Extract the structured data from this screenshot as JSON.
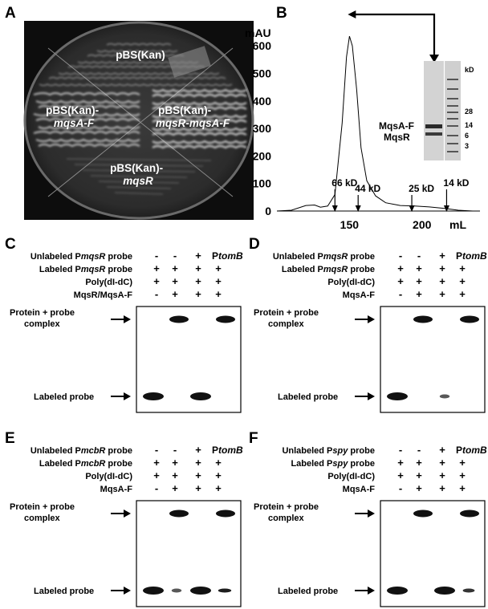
{
  "panels": {
    "A": {
      "label": "A",
      "sectors": [
        {
          "lines": [
            "pBS(Kan)"
          ],
          "italic": [
            false
          ]
        },
        {
          "lines": [
            "pBS(Kan)-",
            "mqsA-F"
          ],
          "italic": [
            false,
            true
          ]
        },
        {
          "lines": [
            "pBS(Kan)-",
            "mqsR-mqsA-F"
          ],
          "italic": [
            false,
            true
          ]
        },
        {
          "lines": [
            "pBS(Kan)-",
            "mqsR"
          ],
          "italic": [
            false,
            true
          ]
        }
      ]
    },
    "B": {
      "label": "B",
      "y_unit": "mAU",
      "x_unit": "mL",
      "markers": [
        "66 kD",
        "44 kD",
        "25 kD",
        "14 kD"
      ],
      "gel": {
        "unit": "kD",
        "ladder": [
          "28",
          "14",
          "6",
          "3"
        ],
        "bands": [
          "MqsA-F",
          "MqsR"
        ]
      }
    },
    "emsa": [
      {
        "label": "C",
        "rows": [
          {
            "pre": "Unlabeled P",
            "it": "mqsR",
            "post": " probe",
            "sym": [
              "-",
              "-",
              "+",
              "PtomB"
            ]
          },
          {
            "pre": "Labeled P",
            "it": "mqsR",
            "post": " probe",
            "sym": [
              "+",
              "+",
              "+",
              "+"
            ]
          },
          {
            "pre": "Poly(dI-dC)",
            "it": "",
            "post": "",
            "sym": [
              "+",
              "+",
              "+",
              "+"
            ]
          },
          {
            "pre": "MqsR/MqsA-F",
            "it": "",
            "post": "",
            "sym": [
              "-",
              "+",
              "+",
              "+"
            ]
          }
        ],
        "bands_top": [
          false,
          true,
          false,
          true
        ],
        "bands_bottom": [
          1,
          0,
          1,
          0
        ]
      },
      {
        "label": "D",
        "rows": [
          {
            "pre": "Unlabeled P",
            "it": "mqsR",
            "post": " probe",
            "sym": [
              "-",
              "-",
              "+",
              "PtomB"
            ]
          },
          {
            "pre": "Labeled P",
            "it": "mqsR",
            "post": " probe",
            "sym": [
              "+",
              "+",
              "+",
              "+"
            ]
          },
          {
            "pre": "Poly(dI-dC)",
            "it": "",
            "post": "",
            "sym": [
              "+",
              "+",
              "+",
              "+"
            ]
          },
          {
            "pre": "MqsA-F",
            "it": "",
            "post": "",
            "sym": [
              "-",
              "+",
              "+",
              "+"
            ]
          }
        ],
        "bands_top": [
          false,
          true,
          false,
          true
        ],
        "bands_bottom": [
          1,
          0,
          0.15,
          0
        ]
      },
      {
        "label": "E",
        "rows": [
          {
            "pre": "Unlabeled P",
            "it": "mcbR",
            "post": " probe",
            "sym": [
              "-",
              "-",
              "+",
              "PtomB"
            ]
          },
          {
            "pre": "Labeled P",
            "it": "mcbR",
            "post": " probe",
            "sym": [
              "+",
              "+",
              "+",
              "+"
            ]
          },
          {
            "pre": "Poly(dI-dC)",
            "it": "",
            "post": "",
            "sym": [
              "+",
              "+",
              "+",
              "+"
            ]
          },
          {
            "pre": "MqsA-F",
            "it": "",
            "post": "",
            "sym": [
              "-",
              "+",
              "+",
              "+"
            ]
          }
        ],
        "bands_top": [
          false,
          true,
          false,
          true
        ],
        "bands_bottom": [
          1,
          0.15,
          1,
          0.4
        ]
      },
      {
        "label": "F",
        "rows": [
          {
            "pre": "Unlabeled P",
            "it": "spy",
            "post": " probe",
            "sym": [
              "-",
              "-",
              "+",
              "PtomB"
            ]
          },
          {
            "pre": "Labeled P",
            "it": "spy",
            "post": " probe",
            "sym": [
              "+",
              "+",
              "+",
              "+"
            ]
          },
          {
            "pre": "Poly(dI-dC)",
            "it": "",
            "post": "",
            "sym": [
              "+",
              "+",
              "+",
              "+"
            ]
          },
          {
            "pre": "MqsA-F",
            "it": "",
            "post": "",
            "sym": [
              "-",
              "+",
              "+",
              "+"
            ]
          }
        ],
        "bands_top": [
          false,
          true,
          false,
          true
        ],
        "bands_bottom": [
          1,
          0,
          1,
          0.3
        ]
      }
    ],
    "complex_label": [
      "Protein + probe",
      "complex"
    ],
    "probe_label": "Labeled probe"
  },
  "chart_data": {
    "type": "line",
    "title": "",
    "xlabel": "mL",
    "ylabel": "mAU",
    "ylim": [
      0,
      650
    ],
    "y_ticks": [
      0,
      100,
      200,
      300,
      400,
      500,
      600
    ],
    "x_ticks": [
      150,
      200
    ],
    "series": [
      {
        "x": [
          100,
          110,
          120,
          126,
          130,
          135,
          140,
          145,
          148,
          150,
          152,
          155,
          158,
          162,
          168,
          175,
          185,
          195,
          205,
          215,
          225,
          235
        ],
        "y": [
          0,
          3,
          20,
          22,
          14,
          18,
          60,
          320,
          560,
          635,
          600,
          440,
          230,
          110,
          55,
          30,
          20,
          18,
          15,
          10,
          3,
          0
        ]
      }
    ],
    "markers": [
      {
        "label": "66 kD",
        "x": 140
      },
      {
        "label": "44 kD",
        "x": 156
      },
      {
        "label": "25 kD",
        "x": 193
      },
      {
        "label": "14 kD",
        "x": 217
      }
    ]
  }
}
